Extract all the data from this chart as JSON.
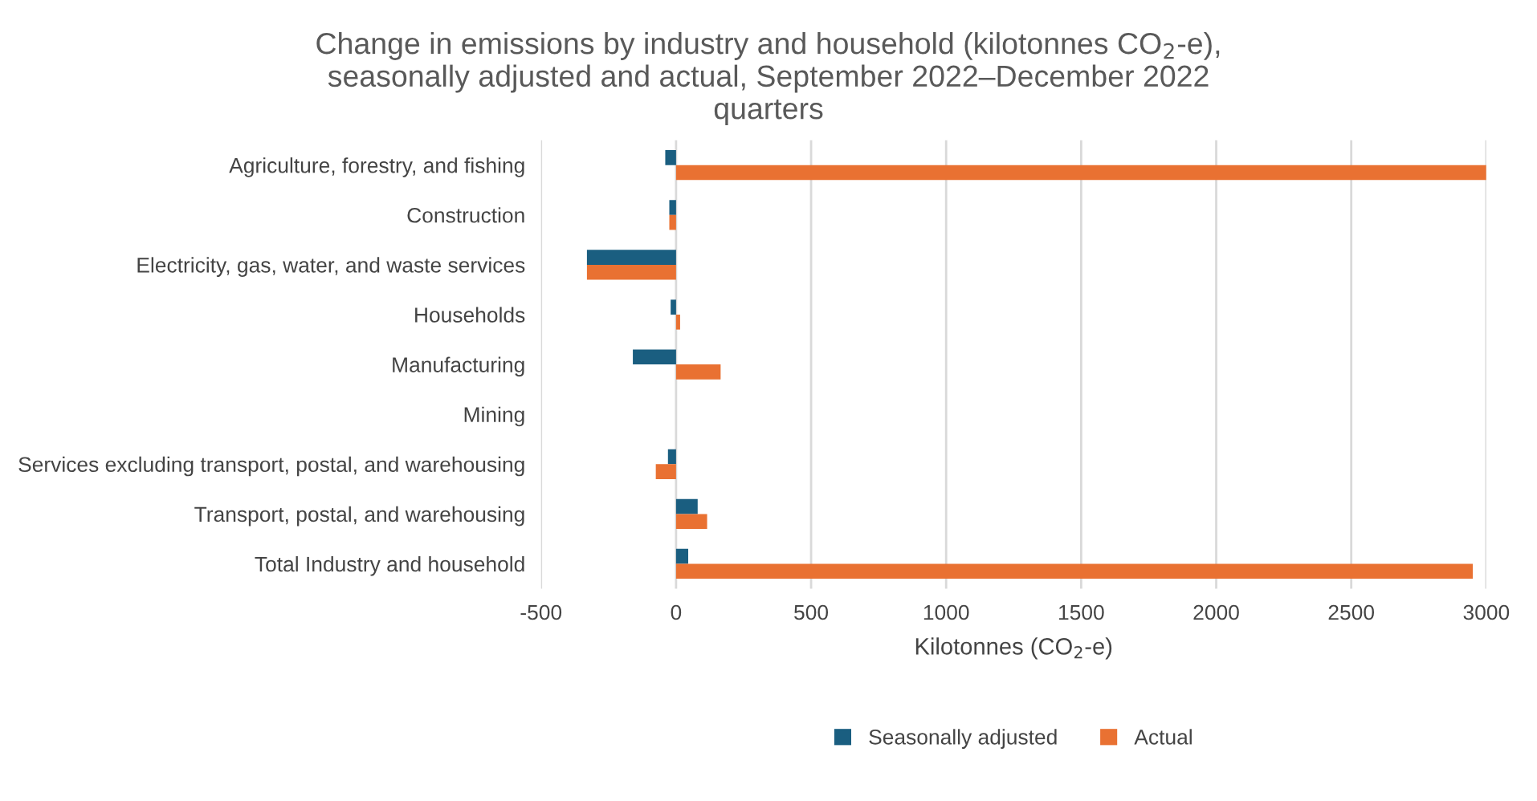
{
  "chart_data": {
    "type": "bar",
    "orientation": "horizontal",
    "title": "Change in emissions by industry and household (kilotonnes CO$_{2}$-e), seasonally adjusted and actual, September 2022–December 2022 quarters",
    "xlabel": "Kilotonnes (CO$_{2}$-e)",
    "categories": [
      "Agriculture, forestry, and fishing",
      "Construction",
      "Electricity, gas, water, and waste services",
      "Households",
      "Manufacturing",
      "Mining",
      "Services excluding transport, postal, and warehousing",
      "Transport, postal, and warehousing",
      "Total Industry and household"
    ],
    "series": [
      {
        "name": "Seasonally adjusted",
        "color": "#1a5e80",
        "values": [
          -40,
          -25,
          -330,
          -20,
          -160,
          0,
          -30,
          80,
          45
        ]
      },
      {
        "name": "Actual",
        "color": "#e97132",
        "values": [
          3000,
          -25,
          -330,
          15,
          165,
          0,
          -75,
          115,
          2950
        ]
      }
    ],
    "xlim": [
      -500,
      3000
    ],
    "xticks": [
      -500,
      0,
      500,
      1000,
      1500,
      2000,
      2500,
      3000
    ],
    "grid": "x",
    "legend": "bottom"
  }
}
